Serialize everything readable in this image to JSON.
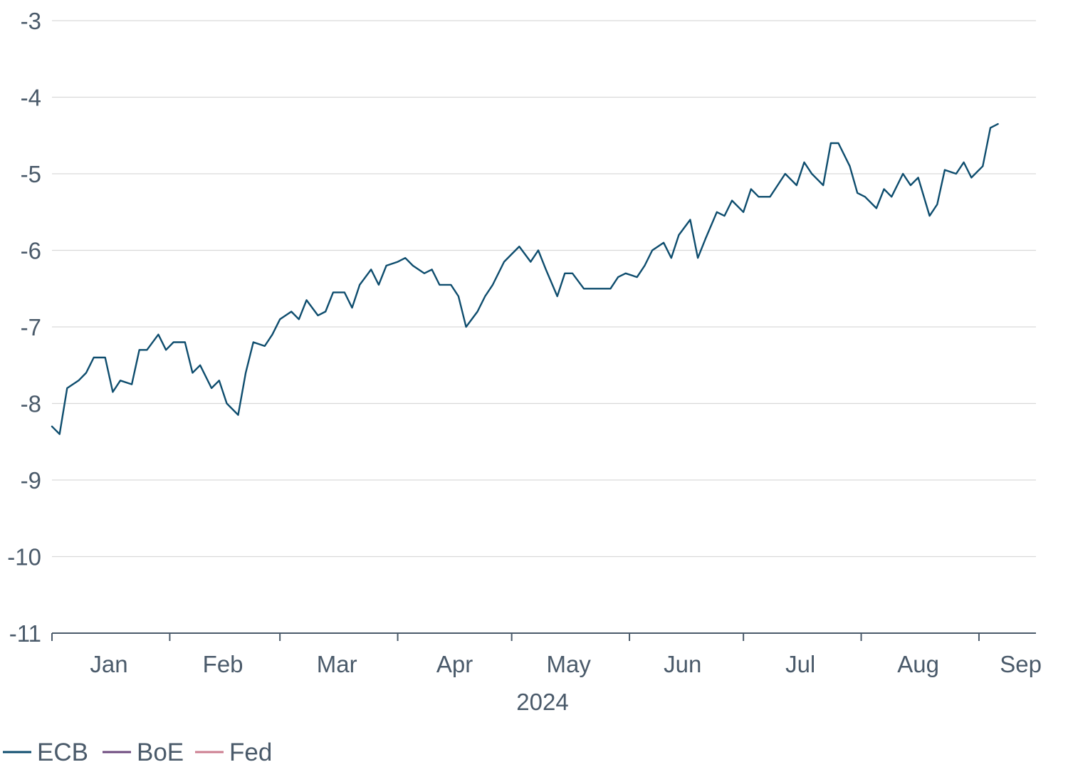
{
  "chart_data": {
    "type": "line",
    "title": "",
    "xlabel": "2024",
    "ylabel": "",
    "ylim": [
      -11,
      -3
    ],
    "yticks": [
      "-3",
      "-4",
      "-5",
      "-6",
      "-7",
      "-8",
      "-9",
      "-10",
      "-11"
    ],
    "xlim": [
      "2024-01-01",
      "2024-09-16"
    ],
    "month_labels": [
      "Jan",
      "Feb",
      "Mar",
      "Apr",
      "May",
      "Jun",
      "Jul",
      "Aug",
      "Sep"
    ],
    "month_label_dates": [
      "2024-01-16",
      "2024-02-15",
      "2024-03-16",
      "2024-04-16",
      "2024-05-16",
      "2024-06-15",
      "2024-07-16",
      "2024-08-16",
      "2024-09-12"
    ],
    "month_boundaries": [
      "2024-01-01",
      "2024-02-01",
      "2024-03-01",
      "2024-04-01",
      "2024-05-01",
      "2024-06-01",
      "2024-07-01",
      "2024-08-01",
      "2024-09-01"
    ],
    "grid": true,
    "legend": "bottom-left",
    "series": [
      {
        "name": "ECB",
        "color": "#0e4d6e",
        "points": [
          [
            "2024-01-01",
            -8.3
          ],
          [
            "2024-01-03",
            -8.4
          ],
          [
            "2024-01-05",
            -7.8
          ],
          [
            "2024-01-08",
            -7.7
          ],
          [
            "2024-01-10",
            -7.6
          ],
          [
            "2024-01-12",
            -7.4
          ],
          [
            "2024-01-15",
            -7.4
          ],
          [
            "2024-01-17",
            -7.85
          ],
          [
            "2024-01-19",
            -7.7
          ],
          [
            "2024-01-22",
            -7.75
          ],
          [
            "2024-01-24",
            -7.3
          ],
          [
            "2024-01-26",
            -7.3
          ],
          [
            "2024-01-29",
            -7.1
          ],
          [
            "2024-01-31",
            -7.3
          ],
          [
            "2024-02-02",
            -7.2
          ],
          [
            "2024-02-05",
            -7.2
          ],
          [
            "2024-02-07",
            -7.6
          ],
          [
            "2024-02-09",
            -7.5
          ],
          [
            "2024-02-12",
            -7.8
          ],
          [
            "2024-02-14",
            -7.7
          ],
          [
            "2024-02-16",
            -8.0
          ],
          [
            "2024-02-19",
            -8.15
          ],
          [
            "2024-02-21",
            -7.6
          ],
          [
            "2024-02-23",
            -7.2
          ],
          [
            "2024-02-26",
            -7.25
          ],
          [
            "2024-02-28",
            -7.1
          ],
          [
            "2024-03-01",
            -6.9
          ],
          [
            "2024-03-04",
            -6.8
          ],
          [
            "2024-03-06",
            -6.9
          ],
          [
            "2024-03-08",
            -6.65
          ],
          [
            "2024-03-11",
            -6.85
          ],
          [
            "2024-03-13",
            -6.8
          ],
          [
            "2024-03-15",
            -6.55
          ],
          [
            "2024-03-18",
            -6.55
          ],
          [
            "2024-03-20",
            -6.75
          ],
          [
            "2024-03-22",
            -6.45
          ],
          [
            "2024-03-25",
            -6.25
          ],
          [
            "2024-03-27",
            -6.45
          ],
          [
            "2024-03-29",
            -6.2
          ],
          [
            "2024-04-01",
            -6.15
          ],
          [
            "2024-04-03",
            -6.1
          ],
          [
            "2024-04-05",
            -6.2
          ],
          [
            "2024-04-08",
            -6.3
          ],
          [
            "2024-04-10",
            -6.25
          ],
          [
            "2024-04-12",
            -6.45
          ],
          [
            "2024-04-15",
            -6.45
          ],
          [
            "2024-04-17",
            -6.6
          ],
          [
            "2024-04-19",
            -7.0
          ],
          [
            "2024-04-22",
            -6.8
          ],
          [
            "2024-04-24",
            -6.6
          ],
          [
            "2024-04-26",
            -6.45
          ],
          [
            "2024-04-29",
            -6.15
          ],
          [
            "2024-05-01",
            -6.05
          ],
          [
            "2024-05-03",
            -5.95
          ],
          [
            "2024-05-06",
            -6.15
          ],
          [
            "2024-05-08",
            -6.0
          ],
          [
            "2024-05-10",
            -6.25
          ],
          [
            "2024-05-13",
            -6.6
          ],
          [
            "2024-05-15",
            -6.3
          ],
          [
            "2024-05-17",
            -6.3
          ],
          [
            "2024-05-20",
            -6.5
          ],
          [
            "2024-05-22",
            -6.5
          ],
          [
            "2024-05-24",
            -6.5
          ],
          [
            "2024-05-27",
            -6.5
          ],
          [
            "2024-05-29",
            -6.35
          ],
          [
            "2024-05-31",
            -6.3
          ],
          [
            "2024-06-03",
            -6.35
          ],
          [
            "2024-06-05",
            -6.2
          ],
          [
            "2024-06-07",
            -6.0
          ],
          [
            "2024-06-10",
            -5.9
          ],
          [
            "2024-06-12",
            -6.1
          ],
          [
            "2024-06-14",
            -5.8
          ],
          [
            "2024-06-17",
            -5.6
          ],
          [
            "2024-06-19",
            -6.1
          ],
          [
            "2024-06-21",
            -5.85
          ],
          [
            "2024-06-24",
            -5.5
          ],
          [
            "2024-06-26",
            -5.55
          ],
          [
            "2024-06-28",
            -5.35
          ],
          [
            "2024-07-01",
            -5.5
          ],
          [
            "2024-07-03",
            -5.2
          ],
          [
            "2024-07-05",
            -5.3
          ],
          [
            "2024-07-08",
            -5.3
          ],
          [
            "2024-07-10",
            -5.15
          ],
          [
            "2024-07-12",
            -5.0
          ],
          [
            "2024-07-15",
            -5.15
          ],
          [
            "2024-07-17",
            -4.85
          ],
          [
            "2024-07-19",
            -5.0
          ],
          [
            "2024-07-22",
            -5.15
          ],
          [
            "2024-07-24",
            -4.6
          ],
          [
            "2024-07-26",
            -4.6
          ],
          [
            "2024-07-29",
            -4.9
          ],
          [
            "2024-07-31",
            -5.25
          ],
          [
            "2024-08-02",
            -5.3
          ],
          [
            "2024-08-05",
            -5.45
          ],
          [
            "2024-08-07",
            -5.2
          ],
          [
            "2024-08-09",
            -5.3
          ],
          [
            "2024-08-12",
            -5.0
          ],
          [
            "2024-08-14",
            -5.15
          ],
          [
            "2024-08-16",
            -5.05
          ],
          [
            "2024-08-19",
            -5.55
          ],
          [
            "2024-08-21",
            -5.4
          ],
          [
            "2024-08-23",
            -4.95
          ],
          [
            "2024-08-26",
            -5.0
          ],
          [
            "2024-08-28",
            -4.85
          ],
          [
            "2024-08-30",
            -5.05
          ],
          [
            "2024-09-02",
            -4.9
          ],
          [
            "2024-09-04",
            -4.4
          ],
          [
            "2024-09-06",
            -4.35
          ]
        ]
      }
    ]
  },
  "legend": {
    "items": [
      {
        "label": "ECB",
        "color": "#0e4d6e"
      },
      {
        "label": "BoE",
        "color": "#6d4a7e"
      },
      {
        "label": "Fed",
        "color": "#cc7e90"
      }
    ]
  }
}
